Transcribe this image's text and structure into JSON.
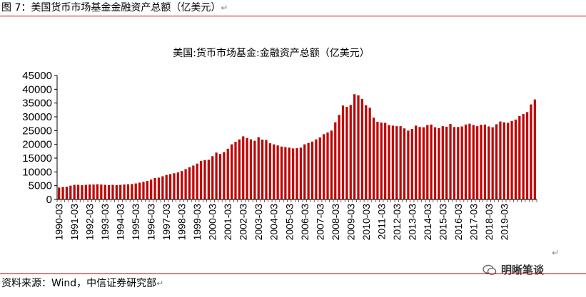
{
  "figure": {
    "caption": "图 7：美国货币市场基金金融资产总额（亿美元）",
    "return_mark": "↵",
    "source": "资料来源：Wind，中信证券研究部",
    "watermark_text": "明晰笔谈"
  },
  "colors": {
    "bar": "#c00000",
    "rule": "#c00000",
    "axis": "#000000"
  },
  "chart_data": {
    "type": "bar",
    "title": "美国:货币市场基金:金融资产总额（亿美元）",
    "ylim": [
      0,
      45000
    ],
    "yticks": [
      0,
      5000,
      10000,
      15000,
      20000,
      25000,
      30000,
      35000,
      40000,
      45000
    ],
    "xtick_labels": [
      "1990-03",
      "1991-03",
      "1992-03",
      "1993-03",
      "1994-03",
      "1995-03",
      "1996-03",
      "1997-03",
      "1998-03",
      "1999-03",
      "2000-03",
      "2001-03",
      "2002-03",
      "2003-03",
      "2004-03",
      "2005-03",
      "2006-03",
      "2007-03",
      "2008-03",
      "2009-03",
      "2010-03",
      "2011-03",
      "2012-03",
      "2013-03",
      "2014-03",
      "2015-03",
      "2016-03",
      "2017-03",
      "2018-03",
      "2019-03"
    ],
    "grid": false,
    "values": [
      4300,
      4500,
      4600,
      5000,
      5300,
      5300,
      5200,
      5300,
      5400,
      5400,
      5500,
      5400,
      5300,
      5200,
      5300,
      5200,
      5300,
      5400,
      5500,
      5600,
      5800,
      6100,
      6400,
      6700,
      7200,
      7800,
      7900,
      8400,
      8900,
      9200,
      9500,
      9800,
      10300,
      11000,
      11700,
      12300,
      13000,
      14000,
      14300,
      14400,
      15700,
      17000,
      16500,
      17200,
      18400,
      20000,
      20900,
      21800,
      22900,
      22300,
      21800,
      21300,
      22600,
      21700,
      21600,
      20400,
      20000,
      19600,
      19200,
      19000,
      18800,
      18500,
      18600,
      18800,
      20000,
      20500,
      21000,
      21800,
      22500,
      23700,
      24300,
      25000,
      28000,
      30700,
      34100,
      33600,
      34300,
      38200,
      37800,
      36500,
      34200,
      33300,
      29700,
      28200,
      27900,
      27800,
      27000,
      26800,
      26600,
      26600,
      25800,
      25000,
      25600,
      26800,
      26300,
      26200,
      27000,
      27200,
      26200,
      25900,
      26600,
      26400,
      27400,
      26300,
      26300,
      26500,
      27200,
      27500,
      27000,
      26600,
      27100,
      27200,
      26500,
      26200,
      27300,
      28300,
      28000,
      27800,
      28500,
      29000,
      30300,
      31000,
      31700,
      34500,
      36300
    ]
  }
}
